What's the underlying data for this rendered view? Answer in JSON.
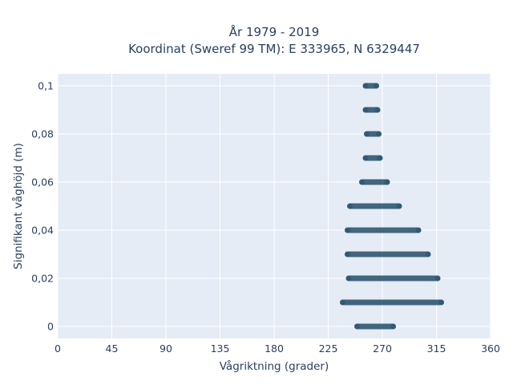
{
  "chart_data": {
    "type": "scatter",
    "title_lines": [
      "År 1979 - 2019",
      "Koordinat (Sweref 99 TM): E 333965, N 6329447"
    ],
    "xlabel": "Vågriktning (grader)",
    "ylabel": "Signifikant våghöjd (m)",
    "xlim": [
      0,
      360
    ],
    "ylim": [
      -0.005,
      0.105
    ],
    "x_ticks": [
      0,
      45,
      90,
      135,
      180,
      225,
      270,
      315,
      360
    ],
    "x_tick_labels": [
      "0",
      "45",
      "90",
      "135",
      "180",
      "225",
      "270",
      "315",
      "360"
    ],
    "y_ticks": [
      0,
      0.02,
      0.04,
      0.06,
      0.08,
      0.1
    ],
    "y_tick_labels": [
      "0",
      "0,02",
      "0,04",
      "0,06",
      "0,08",
      "0,1"
    ],
    "grid": true,
    "legend": "none",
    "colors": {
      "background": "#e5ecf6",
      "grid": "#ffffff",
      "marker": "#2f5670",
      "text": "#2a3f5f"
    },
    "series": [
      {
        "bands": [
          {
            "y": 0.1,
            "x_min": 256,
            "x_max": 265
          },
          {
            "y": 0.09,
            "x_min": 256,
            "x_max": 266
          },
          {
            "y": 0.08,
            "x_min": 257,
            "x_max": 267
          },
          {
            "y": 0.07,
            "x_min": 256,
            "x_max": 268
          },
          {
            "y": 0.06,
            "x_min": 253,
            "x_max": 274
          },
          {
            "y": 0.05,
            "x_min": 243,
            "x_max": 284
          },
          {
            "y": 0.04,
            "x_min": 241,
            "x_max": 300
          },
          {
            "y": 0.03,
            "x_min": 241,
            "x_max": 308
          },
          {
            "y": 0.02,
            "x_min": 242,
            "x_max": 316
          },
          {
            "y": 0.01,
            "x_min": 237,
            "x_max": 319
          },
          {
            "y": 0.0,
            "x_min": 249,
            "x_max": 279
          }
        ]
      }
    ]
  }
}
